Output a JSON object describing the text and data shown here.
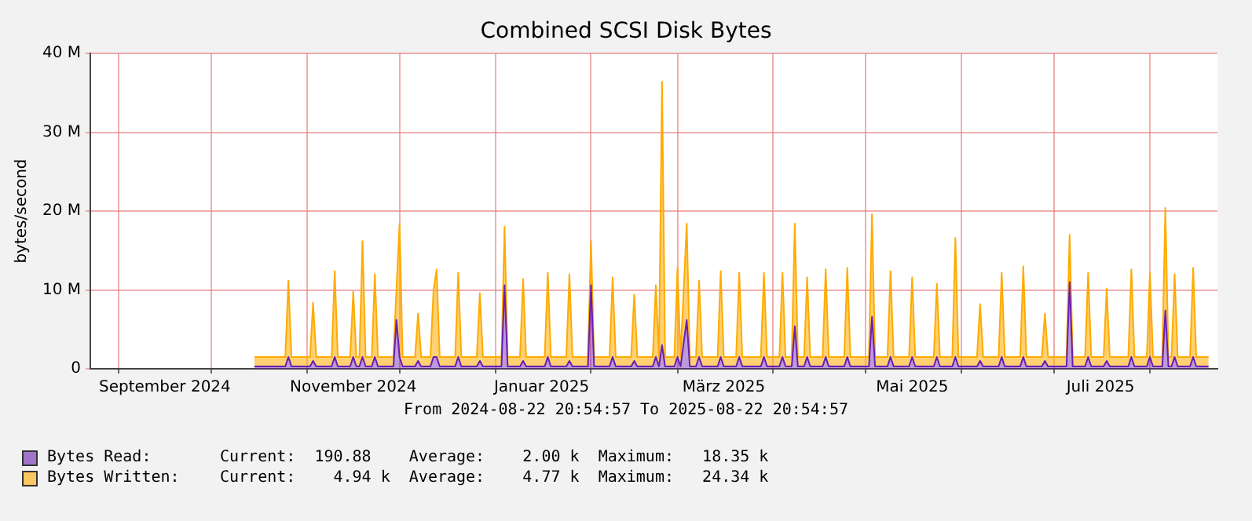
{
  "chart_data": {
    "type": "area",
    "stacked": true,
    "title": "Combined SCSI Disk Bytes",
    "ylabel": "bytes/second",
    "x": [
      "2024-10-15",
      "2024-10-25",
      "2024-10-26",
      "2024-10-27",
      "2024-11-02",
      "2024-11-03",
      "2024-11-04",
      "2024-11-09",
      "2024-11-10",
      "2024-11-11",
      "2024-11-15",
      "2024-11-16",
      "2024-11-17",
      "2024-11-18",
      "2024-11-19",
      "2024-11-20",
      "2024-11-22",
      "2024-11-23",
      "2024-11-24",
      "2024-11-29",
      "2024-11-30",
      "2024-12-01",
      "2024-12-02",
      "2024-12-06",
      "2024-12-07",
      "2024-12-08",
      "2024-12-11",
      "2024-12-12",
      "2024-12-13",
      "2024-12-14",
      "2024-12-19",
      "2024-12-20",
      "2024-12-21",
      "2024-12-26",
      "2024-12-27",
      "2024-12-28",
      "2025-01-03",
      "2025-01-04",
      "2025-01-05",
      "2025-01-09",
      "2025-01-10",
      "2025-01-11",
      "2025-01-17",
      "2025-01-18",
      "2025-01-19",
      "2025-01-24",
      "2025-01-25",
      "2025-01-26",
      "2025-01-31",
      "2025-02-01",
      "2025-02-02",
      "2025-02-07",
      "2025-02-08",
      "2025-02-09",
      "2025-02-14",
      "2025-02-15",
      "2025-02-16",
      "2025-02-21",
      "2025-02-22",
      "2025-02-23",
      "2025-02-24",
      "2025-02-25",
      "2025-02-28",
      "2025-03-01",
      "2025-03-02",
      "2025-03-04",
      "2025-03-05",
      "2025-03-07",
      "2025-03-08",
      "2025-03-09",
      "2025-03-14",
      "2025-03-15",
      "2025-03-16",
      "2025-03-20",
      "2025-03-21",
      "2025-03-22",
      "2025-03-28",
      "2025-03-29",
      "2025-03-30",
      "2025-04-03",
      "2025-04-04",
      "2025-04-05",
      "2025-04-07",
      "2025-04-08",
      "2025-04-09",
      "2025-04-11",
      "2025-04-12",
      "2025-04-13",
      "2025-04-17",
      "2025-04-18",
      "2025-04-19",
      "2025-04-24",
      "2025-04-25",
      "2025-04-26",
      "2025-05-02",
      "2025-05-03",
      "2025-05-04",
      "2025-05-08",
      "2025-05-09",
      "2025-05-10",
      "2025-05-15",
      "2025-05-16",
      "2025-05-17",
      "2025-05-23",
      "2025-05-24",
      "2025-05-25",
      "2025-05-29",
      "2025-05-30",
      "2025-05-31",
      "2025-06-06",
      "2025-06-07",
      "2025-06-08",
      "2025-06-13",
      "2025-06-14",
      "2025-06-15",
      "2025-06-20",
      "2025-06-21",
      "2025-06-22",
      "2025-06-27",
      "2025-06-28",
      "2025-06-29",
      "2025-07-05",
      "2025-07-06",
      "2025-07-07",
      "2025-07-11",
      "2025-07-12",
      "2025-07-13",
      "2025-07-17",
      "2025-07-18",
      "2025-07-19",
      "2025-07-25",
      "2025-07-26",
      "2025-07-27",
      "2025-07-31",
      "2025-08-01",
      "2025-08-02",
      "2025-08-05",
      "2025-08-06",
      "2025-08-07",
      "2025-08-08",
      "2025-08-09",
      "2025-08-10",
      "2025-08-14",
      "2025-08-15",
      "2025-08-16",
      "2025-08-20"
    ],
    "series": [
      {
        "name": "Bytes Read:",
        "color": "#6a1fb0",
        "values": [
          300000,
          300000,
          1500000,
          300000,
          300000,
          1000000,
          300000,
          300000,
          1500000,
          300000,
          300000,
          1500000,
          300000,
          300000,
          1500000,
          300000,
          300000,
          1500000,
          300000,
          300000,
          6200000,
          1500000,
          300000,
          300000,
          1000000,
          300000,
          300000,
          1500000,
          1500000,
          300000,
          300000,
          1500000,
          300000,
          300000,
          1000000,
          300000,
          300000,
          10600000,
          300000,
          300000,
          1000000,
          300000,
          300000,
          1500000,
          300000,
          300000,
          1000000,
          300000,
          300000,
          10600000,
          300000,
          300000,
          1500000,
          300000,
          300000,
          1000000,
          300000,
          300000,
          1500000,
          300000,
          3000000,
          300000,
          300000,
          1500000,
          300000,
          6200000,
          300000,
          300000,
          1500000,
          300000,
          300000,
          1500000,
          300000,
          300000,
          1500000,
          300000,
          300000,
          1500000,
          300000,
          300000,
          1500000,
          300000,
          300000,
          5400000,
          300000,
          300000,
          1500000,
          300000,
          300000,
          1500000,
          300000,
          300000,
          1500000,
          300000,
          300000,
          6600000,
          300000,
          300000,
          1500000,
          300000,
          300000,
          1500000,
          300000,
          300000,
          1500000,
          300000,
          300000,
          1500000,
          300000,
          300000,
          1000000,
          300000,
          300000,
          1500000,
          300000,
          300000,
          1500000,
          300000,
          300000,
          1000000,
          300000,
          300000,
          11000000,
          300000,
          300000,
          1500000,
          300000,
          300000,
          1000000,
          300000,
          300000,
          1500000,
          300000,
          300000,
          1500000,
          300000,
          300000,
          7400000,
          300000,
          300000,
          1500000,
          300000,
          300000,
          1500000,
          300000,
          300000
        ]
      },
      {
        "name": "Bytes Written:",
        "color": "#ffab00",
        "values": [
          1200000,
          1200000,
          9700000,
          1200000,
          1200000,
          7400000,
          1200000,
          1200000,
          10900000,
          1200000,
          1200000,
          8300000,
          1200000,
          1200000,
          14700000,
          1200000,
          1200000,
          10500000,
          1200000,
          1200000,
          4000000,
          16900000,
          1200000,
          1200000,
          6000000,
          1200000,
          1200000,
          8500000,
          11100000,
          1200000,
          1200000,
          10700000,
          1200000,
          1200000,
          8600000,
          1200000,
          1200000,
          7400000,
          1200000,
          1200000,
          10400000,
          1200000,
          1200000,
          10700000,
          1200000,
          1200000,
          11000000,
          1200000,
          1200000,
          5600000,
          1200000,
          1200000,
          10100000,
          1200000,
          1200000,
          8400000,
          1200000,
          1200000,
          9100000,
          1200000,
          33400000,
          1200000,
          1200000,
          11300000,
          1200000,
          12200000,
          1200000,
          1200000,
          9700000,
          1200000,
          1200000,
          10900000,
          1200000,
          1200000,
          10700000,
          1200000,
          1200000,
          10700000,
          1200000,
          1200000,
          10700000,
          1200000,
          1200000,
          13000000,
          1200000,
          1200000,
          10100000,
          1200000,
          1200000,
          11100000,
          1200000,
          1200000,
          11300000,
          1200000,
          1200000,
          13000000,
          1200000,
          1200000,
          10900000,
          1200000,
          1200000,
          10100000,
          1200000,
          1200000,
          9300000,
          1200000,
          1200000,
          15100000,
          1200000,
          1200000,
          7200000,
          1200000,
          1200000,
          10700000,
          1200000,
          1200000,
          11500000,
          1200000,
          1200000,
          6000000,
          1200000,
          1200000,
          6000000,
          1200000,
          1200000,
          10700000,
          1200000,
          1200000,
          9200000,
          1200000,
          1200000,
          11100000,
          1200000,
          1200000,
          10700000,
          1200000,
          1200000,
          13000000,
          1200000,
          1200000,
          10500000,
          1200000,
          1200000,
          11300000,
          1200000,
          1200000
        ]
      }
    ],
    "xlim": [
      "2024-08-22T20:54",
      "2025-08-22T20:54"
    ],
    "xticks": [
      {
        "value": "2024-09-01",
        "label": null
      },
      {
        "value": "2024-09-16",
        "label": "September 2024"
      },
      {
        "value": "2024-10-01",
        "label": null
      },
      {
        "value": "2024-11-01",
        "label": null
      },
      {
        "value": "2024-11-16",
        "label": "November 2024"
      },
      {
        "value": "2024-12-01",
        "label": null
      },
      {
        "value": "2025-01-01",
        "label": null
      },
      {
        "value": "2025-01-16",
        "label": "Januar 2025"
      },
      {
        "value": "2025-02-01",
        "label": null
      },
      {
        "value": "2025-03-01",
        "label": null
      },
      {
        "value": "2025-03-16",
        "label": "März 2025"
      },
      {
        "value": "2025-04-01",
        "label": null
      },
      {
        "value": "2025-05-01",
        "label": null
      },
      {
        "value": "2025-05-16",
        "label": "Mai 2025"
      },
      {
        "value": "2025-06-01",
        "label": null
      },
      {
        "value": "2025-07-01",
        "label": null
      },
      {
        "value": "2025-07-16",
        "label": "Juli 2025"
      },
      {
        "value": "2025-08-01",
        "label": null
      }
    ],
    "ylim": [
      0,
      40000000
    ],
    "yticks": [
      0,
      {
        "value": 10000000,
        "label": "10 M"
      },
      {
        "value": 20000000,
        "label": "20 M"
      },
      {
        "value": 30000000,
        "label": "30 M"
      },
      {
        "value": 40000000,
        "label": "40 M"
      }
    ],
    "grid": true,
    "legend": "bottom left",
    "annotations": [
      "From 2024-08-22 20:54:57 To 2025-08-22 20:54:57",
      "Current:  190.88    Average:    2.00 k  Maximum:   18.35 k",
      "Current:    4.94 k  Average:    4.77 k  Maximum:   24.34 k"
    ]
  }
}
